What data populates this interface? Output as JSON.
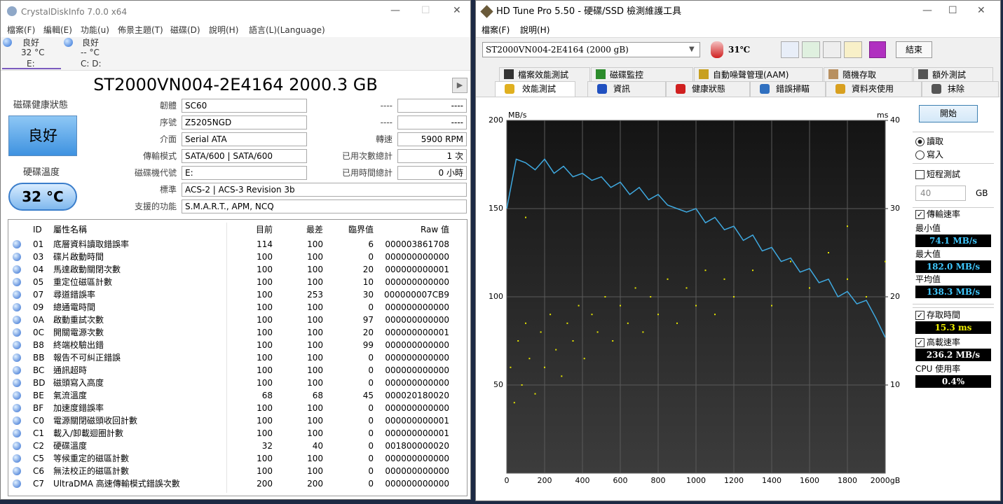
{
  "crystaldiskinfo": {
    "title": "CrystalDiskInfo 7.0.0 x64",
    "menu": [
      "檔案(F)",
      "編輯(E)",
      "功能(u)",
      "佈景主題(T)",
      "磁碟(D)",
      "說明(H)",
      "語言(L)(Language)"
    ],
    "drives": [
      {
        "status": "良好",
        "temp": "32 °C",
        "letter": "E:"
      },
      {
        "status": "良好",
        "temp": "-- °C",
        "letter": "C: D:"
      }
    ],
    "model": "ST2000VN004-2E4164 2000.3 GB",
    "health_label": "磁碟健康狀態",
    "health": "良好",
    "temp_label": "硬碟溫度",
    "temp": "32 °C",
    "fields": [
      [
        "韌體",
        "SC60"
      ],
      [
        "序號",
        "Z5205NGD"
      ],
      [
        "介面",
        "Serial ATA"
      ],
      [
        "傳輸模式",
        "SATA/600 | SATA/600"
      ],
      [
        "磁碟機代號",
        "E:"
      ],
      [
        "標準",
        "ACS-2 | ACS-3 Revision 3b"
      ],
      [
        "支援的功能",
        "S.M.A.R.T., APM, NCQ"
      ]
    ],
    "right_fields": [
      [
        "----",
        "----"
      ],
      [
        "----",
        "----"
      ],
      [
        "轉速",
        "5900 RPM"
      ],
      [
        "已用次數總計",
        "1 次"
      ],
      [
        "已用時間總計",
        "0 小時"
      ]
    ],
    "table": {
      "header": [
        "ID",
        "屬性名稱",
        "目前",
        "最差",
        "臨界值",
        "Raw 值"
      ],
      "rows": [
        [
          "01",
          "底層資料讀取錯誤率",
          "114",
          "100",
          "6",
          "000003861708"
        ],
        [
          "03",
          "碟片啟動時間",
          "100",
          "100",
          "0",
          "000000000000"
        ],
        [
          "04",
          "馬達啟動關閉次數",
          "100",
          "100",
          "20",
          "000000000001"
        ],
        [
          "05",
          "重定位磁區計數",
          "100",
          "100",
          "10",
          "000000000000"
        ],
        [
          "07",
          "尋道錯誤率",
          "100",
          "253",
          "30",
          "000000007CB9"
        ],
        [
          "09",
          "總通電時間",
          "100",
          "100",
          "0",
          "000000000000"
        ],
        [
          "0A",
          "啟動重試次數",
          "100",
          "100",
          "97",
          "000000000000"
        ],
        [
          "0C",
          "開關電源次數",
          "100",
          "100",
          "20",
          "000000000001"
        ],
        [
          "B8",
          "終端校驗出錯",
          "100",
          "100",
          "99",
          "000000000000"
        ],
        [
          "BB",
          "報告不可糾正錯誤",
          "100",
          "100",
          "0",
          "000000000000"
        ],
        [
          "BC",
          "通訊超時",
          "100",
          "100",
          "0",
          "000000000000"
        ],
        [
          "BD",
          "磁頭寫入高度",
          "100",
          "100",
          "0",
          "000000000000"
        ],
        [
          "BE",
          "氣流溫度",
          "68",
          "68",
          "45",
          "000020180020"
        ],
        [
          "BF",
          "加速度錯誤率",
          "100",
          "100",
          "0",
          "000000000000"
        ],
        [
          "C0",
          "電源關閉磁頭收回計數",
          "100",
          "100",
          "0",
          "000000000001"
        ],
        [
          "C1",
          "載入/卸載迴圈計數",
          "100",
          "100",
          "0",
          "000000000001"
        ],
        [
          "C2",
          "硬碟溫度",
          "32",
          "40",
          "0",
          "001800000020"
        ],
        [
          "C5",
          "等候重定的磁區計數",
          "100",
          "100",
          "0",
          "000000000000"
        ],
        [
          "C6",
          "無法校正的磁區計數",
          "100",
          "100",
          "0",
          "000000000000"
        ],
        [
          "C7",
          "UltraDMA 高速傳輸模式錯誤次數",
          "200",
          "200",
          "0",
          "000000000000"
        ]
      ]
    }
  },
  "hdtune": {
    "title": "HD Tune Pro 5.50 - 硬碟/SSD 檢測維護工具",
    "menu": [
      "檔案(F)",
      "說明(H)"
    ],
    "drive": "ST2000VN004-2E4164 (2000 gB)",
    "temperature": "31℃",
    "exit": "結束",
    "tabs_row1": [
      "檔案效能測試",
      "磁碟監控",
      "自動噪聲管理(AAM)",
      "隨機存取",
      "額外測試"
    ],
    "tabs_row2": [
      "效能測試",
      "資訊",
      "健康狀態",
      "錯誤掃瞄",
      "資料夾使用",
      "抹除"
    ],
    "start": "開始",
    "read": "讀取",
    "write": "寫入",
    "short_test": "短程測試",
    "short_size": "40",
    "short_unit": "GB",
    "transfer_rate": "傳輸速率",
    "min_label": "最小值",
    "min": "74.1 MB/s",
    "max_label": "最大值",
    "max": "182.0 MB/s",
    "avg_label": "平均值",
    "avg": "138.3 MB/s",
    "access_label": "存取時間",
    "access": "15.3 ms",
    "burst_label": "高載速率",
    "burst": "236.2 MB/s",
    "cpu_label": "CPU 使用率",
    "cpu": "0.4%"
  },
  "chart_data": {
    "type": "line",
    "y_label": "MB/s",
    "y2_label": "ms",
    "xlim": [
      0,
      2000
    ],
    "xticks": [
      0,
      200,
      400,
      600,
      800,
      1000,
      1200,
      1400,
      1600,
      1800,
      {
        "value": 2000,
        "label": "2000gB"
      }
    ],
    "ylim": [
      0,
      200
    ],
    "yticks": [
      50,
      100,
      150,
      200
    ],
    "y2lim": [
      0,
      40
    ],
    "y2ticks": [
      10,
      20,
      30,
      40
    ],
    "grid": true,
    "series": [
      {
        "type": "line",
        "color": "#3fa9e0",
        "x": [
          0,
          50,
          100,
          150,
          200,
          250,
          300,
          350,
          400,
          450,
          500,
          550,
          600,
          650,
          700,
          750,
          800,
          850,
          900,
          950,
          1000,
          1050,
          1100,
          1150,
          1200,
          1250,
          1300,
          1350,
          1400,
          1450,
          1500,
          1550,
          1600,
          1650,
          1700,
          1750,
          1800,
          1850,
          1900,
          1950,
          2000
        ],
        "values": [
          150,
          178,
          176,
          172,
          178,
          170,
          174,
          168,
          170,
          166,
          168,
          162,
          165,
          158,
          162,
          155,
          158,
          152,
          150,
          148,
          150,
          142,
          145,
          138,
          140,
          132,
          135,
          126,
          128,
          120,
          122,
          114,
          116,
          108,
          110,
          100,
          103,
          96,
          98,
          88,
          77
        ]
      },
      {
        "type": "scatter",
        "axis": "y2",
        "color": "#e6e600",
        "x": [
          20,
          40,
          60,
          80,
          100,
          100,
          120,
          150,
          180,
          200,
          230,
          260,
          290,
          320,
          350,
          380,
          410,
          450,
          480,
          520,
          560,
          600,
          640,
          680,
          720,
          760,
          800,
          850,
          900,
          950,
          1000,
          1050,
          1100,
          1150,
          1200,
          1300,
          1400,
          1500,
          1600,
          1700,
          1800,
          1800,
          1900,
          2000
        ],
        "values": [
          12,
          8,
          15,
          10,
          17,
          29,
          13,
          9,
          16,
          12,
          18,
          14,
          11,
          17,
          15,
          19,
          13,
          18,
          16,
          20,
          15,
          19,
          17,
          21,
          16,
          20,
          18,
          22,
          17,
          21,
          19,
          23,
          18,
          22,
          20,
          23,
          19,
          24,
          21,
          25,
          22,
          28,
          20,
          24
        ]
      }
    ]
  }
}
